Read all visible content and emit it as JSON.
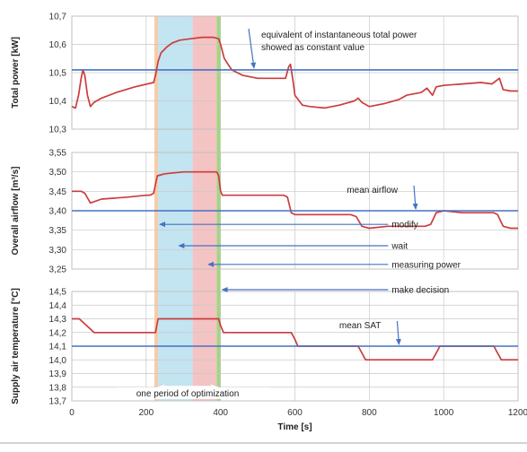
{
  "chart_data": [
    {
      "type": "line",
      "ylabel": "Total power [kW]",
      "ylim": [
        10.3,
        10.7
      ],
      "yticks": [
        "10,3",
        "10,4",
        "10,5",
        "10,6",
        "10,7"
      ],
      "xlim": [
        0,
        1200
      ],
      "xticks": [
        "0",
        "200",
        "400",
        "600",
        "800",
        "1000",
        "1200"
      ],
      "grid": true,
      "mean_value": 10.51,
      "annotation": [
        "equivalent of instantaneous total power",
        "showed as constant value"
      ],
      "annotation_arrow_x": 490,
      "series": [
        {
          "color": "#cc3c3c",
          "x": [
            0,
            10,
            18,
            25,
            30,
            35,
            42,
            50,
            60,
            80,
            120,
            170,
            220,
            225,
            232,
            240,
            255,
            270,
            290,
            320,
            350,
            380,
            395,
            400,
            410,
            430,
            460,
            500,
            540,
            575,
            583,
            588,
            595,
            600,
            620,
            640,
            680,
            720,
            760,
            770,
            780,
            800,
            840,
            880,
            900,
            940,
            955,
            970,
            980,
            1000,
            1050,
            1100,
            1130,
            1140,
            1150,
            1160,
            1180,
            1200
          ],
          "y": [
            10.38,
            10.375,
            10.42,
            10.48,
            10.51,
            10.49,
            10.42,
            10.38,
            10.395,
            10.41,
            10.43,
            10.45,
            10.465,
            10.49,
            10.54,
            10.57,
            10.59,
            10.605,
            10.615,
            10.62,
            10.625,
            10.625,
            10.62,
            10.6,
            10.55,
            10.51,
            10.49,
            10.48,
            10.48,
            10.48,
            10.52,
            10.53,
            10.47,
            10.42,
            10.385,
            10.38,
            10.375,
            10.385,
            10.4,
            10.41,
            10.395,
            10.38,
            10.39,
            10.405,
            10.42,
            10.43,
            10.445,
            10.42,
            10.45,
            10.455,
            10.46,
            10.465,
            10.46,
            10.47,
            10.48,
            10.44,
            10.435,
            10.435
          ]
        },
        {
          "color": "#4472c4",
          "x": [
            0,
            1200
          ],
          "y": [
            10.51,
            10.51
          ]
        }
      ]
    },
    {
      "type": "line",
      "ylabel": "Overall airflow [m³/s]",
      "ylim": [
        3.25,
        3.55
      ],
      "yticks": [
        "3,25",
        "3,30",
        "3,35",
        "3,40",
        "3,45",
        "3,50",
        "3,55"
      ],
      "xlim": [
        0,
        1200
      ],
      "xticks": [
        "0",
        "200",
        "400",
        "600",
        "800",
        "1000",
        "1200"
      ],
      "grid": true,
      "mean_value": 3.4,
      "annotation": [
        "mean airflow"
      ],
      "annotation_arrow_x": 920,
      "series": [
        {
          "color": "#cc3c3c",
          "x": [
            0,
            25,
            35,
            50,
            80,
            150,
            200,
            210,
            220,
            230,
            250,
            300,
            350,
            390,
            395,
            400,
            405,
            420,
            500,
            570,
            580,
            590,
            600,
            650,
            700,
            750,
            765,
            780,
            800,
            850,
            900,
            950,
            965,
            980,
            1000,
            1050,
            1100,
            1135,
            1145,
            1160,
            1180,
            1200
          ],
          "y": [
            3.45,
            3.45,
            3.445,
            3.42,
            3.43,
            3.435,
            3.44,
            3.44,
            3.445,
            3.49,
            3.495,
            3.5,
            3.5,
            3.5,
            3.49,
            3.45,
            3.44,
            3.44,
            3.44,
            3.44,
            3.435,
            3.395,
            3.39,
            3.39,
            3.39,
            3.39,
            3.385,
            3.36,
            3.355,
            3.36,
            3.36,
            3.36,
            3.365,
            3.395,
            3.4,
            3.395,
            3.395,
            3.395,
            3.39,
            3.36,
            3.355,
            3.355
          ]
        },
        {
          "color": "#4472c4",
          "x": [
            0,
            1200
          ],
          "y": [
            3.4,
            3.4
          ]
        }
      ]
    },
    {
      "type": "line",
      "ylabel": "Supply air temperature [°C]",
      "ylim": [
        13.7,
        14.5
      ],
      "yticks": [
        "13,7",
        "13,8",
        "13,9",
        "14,0",
        "14,1",
        "14,2",
        "14,3",
        "14,4",
        "14,5"
      ],
      "xlabel": "Time [s]",
      "xlim": [
        0,
        1200
      ],
      "xticks": [
        "0",
        "200",
        "400",
        "600",
        "800",
        "1000",
        "1200"
      ],
      "grid": true,
      "mean_value": 14.1,
      "annotation": [
        "mean SAT"
      ],
      "annotation_arrow_x": 875,
      "series": [
        {
          "color": "#cc3c3c",
          "x": [
            0,
            20,
            40,
            60,
            100,
            200,
            225,
            232,
            300,
            395,
            400,
            408,
            450,
            590,
            600,
            608,
            700,
            770,
            780,
            790,
            900,
            970,
            980,
            990,
            1100,
            1135,
            1145,
            1155,
            1200
          ],
          "y": [
            14.3,
            14.3,
            14.25,
            14.2,
            14.2,
            14.2,
            14.2,
            14.3,
            14.3,
            14.3,
            14.25,
            14.2,
            14.2,
            14.2,
            14.15,
            14.1,
            14.1,
            14.1,
            14.05,
            14.0,
            14.0,
            14.0,
            14.05,
            14.1,
            14.1,
            14.1,
            14.05,
            14.0,
            14.0
          ]
        },
        {
          "color": "#4472c4",
          "x": [
            0,
            1200
          ],
          "y": [
            14.1,
            14.1
          ]
        }
      ]
    }
  ],
  "phases": [
    {
      "label": "modify",
      "x_start": 222,
      "x_end": 232,
      "color": "#f6c49a",
      "arrow_panel": 1,
      "arrow_y": 3.365,
      "label_x": 870
    },
    {
      "label": "wait",
      "x_start": 232,
      "x_end": 325,
      "color": "#b9dfef",
      "arrow_panel": 1,
      "arrow_y": 3.31,
      "label_x": 870
    },
    {
      "label": "measuring power",
      "x_start": 325,
      "x_end": 390,
      "color": "#f2b8b8",
      "arrow_panel": 1,
      "arrow_y": 3.262,
      "label_x": 870
    },
    {
      "label": "make decision",
      "x_start": 390,
      "x_end": 400,
      "color": "#8fcf6a",
      "arrow_panel": 2,
      "arrow_y": 14.5,
      "label_x": 870
    }
  ],
  "period_annotation": {
    "label": "one period of optimization",
    "x_start": 225,
    "x_end": 398
  },
  "colors": {
    "series": "#cc3c3c",
    "mean": "#4472c4",
    "arrow": "#4472c4",
    "grid": "#c8c8c8"
  }
}
